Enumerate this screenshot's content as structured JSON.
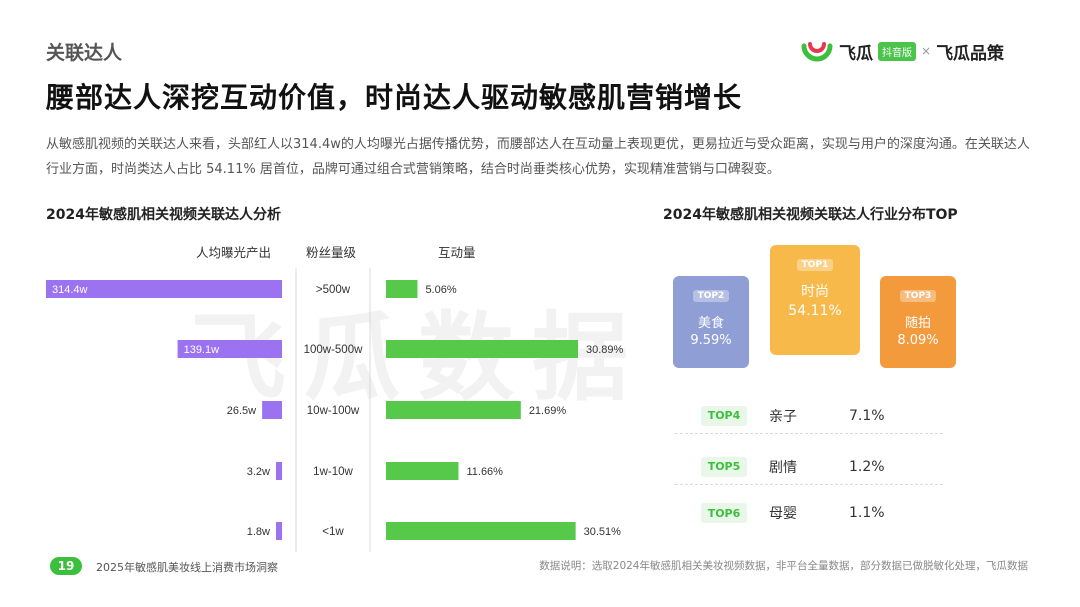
{
  "header": {
    "section_label": "关联达人",
    "title": "腰部达人深挖互动价值，时尚达人驱动敏感肌营销增长",
    "description": "从敏感肌视频的关联达人来看，头部红人以314.4w的人均曝光占据传播优势，而腰部达人在互动量上表现更优，更易拉近与受众距离，实现与用户的深度沟通。在关联达人行业方面，时尚类达人占比 54.11% 居首位，品牌可通过组合式营销策略，结合时尚垂类核心优势，实现精准营销与口碑裂变。"
  },
  "brand": {
    "name": "飞瓜",
    "badge": "抖音版",
    "separator": "×",
    "name2": "飞瓜品策",
    "colors": {
      "green": "#3cbf3c",
      "red": "#e8384f"
    }
  },
  "watermark": "飞瓜数据",
  "left_chart_title": "2024年敏感肌相关视频关联达人分析",
  "right_chart_title": "2024年敏感肌相关视频关联达人行业分布TOP",
  "chart_data": [
    {
      "type": "bar",
      "title": "2024年敏感肌相关视频关联达人分析",
      "column_headers": [
        "人均曝光产出",
        "粉丝量级",
        "互动量"
      ],
      "categories": [
        ">500w",
        "100w-500w",
        "10w-100w",
        "1w-10w",
        "<1w"
      ],
      "series": [
        {
          "name": "人均曝光产出",
          "values": [
            314.4,
            139.1,
            26.5,
            3.2,
            1.8
          ],
          "labels": [
            "314.4w",
            "139.1w",
            "26.5w",
            "3.2w",
            "1.8w"
          ],
          "color": "#9b73f0"
        },
        {
          "name": "互动量",
          "values": [
            5.06,
            30.89,
            21.69,
            11.66,
            30.51
          ],
          "labels": [
            "5.06%",
            "30.89%",
            "21.69%",
            "11.66%",
            "30.51%"
          ],
          "color": "#56c94a"
        }
      ]
    },
    {
      "type": "table",
      "title": "2024年敏感肌相关视频关联达人行业分布TOP",
      "top3": [
        {
          "rank": "TOP1",
          "category": "时尚",
          "value": 54.11,
          "label": "54.11%",
          "color": "#f7b94a"
        },
        {
          "rank": "TOP2",
          "category": "美食",
          "value": 9.59,
          "label": "9.59%",
          "color": "#8f9fd6"
        },
        {
          "rank": "TOP3",
          "category": "随拍",
          "value": 8.09,
          "label": "8.09%",
          "color": "#f39a3c"
        }
      ],
      "others": [
        {
          "rank": "TOP4",
          "category": "亲子",
          "label": "7.1%"
        },
        {
          "rank": "TOP5",
          "category": "剧情",
          "label": "1.2%"
        },
        {
          "rank": "TOP6",
          "category": "母婴",
          "label": "1.1%"
        }
      ]
    }
  ],
  "footer": {
    "page_number": "19",
    "report_name": "2025年敏感肌美妆线上消费市场洞察",
    "source_note": "数据说明：选取2024年敏感肌相关美妆视频数据，非平台全量数据，部分数据已做脱敏化处理，飞瓜数据"
  }
}
